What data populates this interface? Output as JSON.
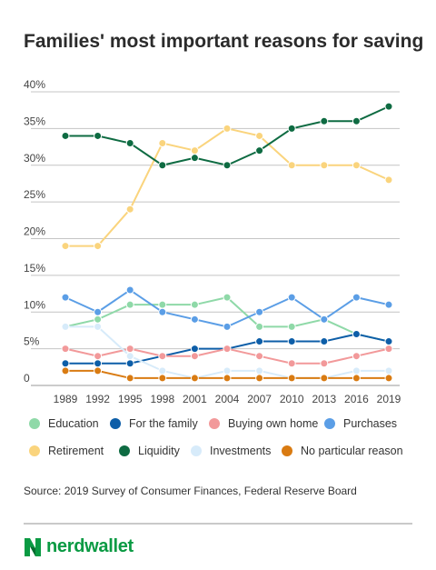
{
  "chart_data": {
    "type": "line",
    "title": "Families' most important reasons for saving",
    "x": [
      "1989",
      "1992",
      "1995",
      "1998",
      "2001",
      "2004",
      "2007",
      "2010",
      "2013",
      "2016",
      "2019"
    ],
    "y_ticks": [
      "0",
      "5%",
      "10%",
      "15%",
      "20%",
      "25%",
      "30%",
      "35%",
      "40%"
    ],
    "ylim": [
      0,
      40
    ],
    "grid": true,
    "legend_position": "bottom",
    "series": [
      {
        "name": "Education",
        "color": "#8fd9a8",
        "values": [
          8,
          9,
          11,
          11,
          11,
          12,
          8,
          8,
          9,
          7,
          6
        ]
      },
      {
        "name": "For the family",
        "color": "#0d5ea8",
        "values": [
          3,
          3,
          3,
          4,
          5,
          5,
          6,
          6,
          6,
          7,
          6
        ]
      },
      {
        "name": "Buying own home",
        "color": "#f2999a",
        "values": [
          5,
          4,
          5,
          4,
          4,
          5,
          4,
          3,
          3,
          4,
          5
        ]
      },
      {
        "name": "Purchases",
        "color": "#5b9ee6",
        "values": [
          12,
          10,
          13,
          10,
          9,
          8,
          10,
          12,
          9,
          12,
          11
        ]
      },
      {
        "name": "Retirement",
        "color": "#fad47d",
        "values": [
          19,
          19,
          24,
          33,
          32,
          35,
          34,
          30,
          30,
          30,
          28
        ]
      },
      {
        "name": "Liquidity",
        "color": "#0e6b42",
        "values": [
          34,
          34,
          33,
          30,
          31,
          30,
          32,
          35,
          36,
          36,
          38
        ]
      },
      {
        "name": "Investments",
        "color": "#d7ebfa",
        "values": [
          8,
          8,
          4,
          2,
          1,
          2,
          2,
          1,
          1,
          2,
          2
        ]
      },
      {
        "name": "No particular reason",
        "color": "#d97b12",
        "values": [
          2,
          2,
          1,
          1,
          1,
          1,
          1,
          1,
          1,
          1,
          1
        ]
      }
    ]
  },
  "legend_row1": [
    {
      "label": "Education",
      "color": "#8fd9a8"
    },
    {
      "label": "For the family",
      "color": "#0d5ea8"
    },
    {
      "label": "Buying own home",
      "color": "#f2999a"
    },
    {
      "label": "Purchases",
      "color": "#5b9ee6"
    }
  ],
  "legend_row2": [
    {
      "label": "Retirement",
      "color": "#fad47d"
    },
    {
      "label": "Liquidity",
      "color": "#0e6b42"
    },
    {
      "label": "Investments",
      "color": "#d7ebfa"
    },
    {
      "label": "No particular reason",
      "color": "#d97b12"
    }
  ],
  "source": "Source: 2019 Survey of Consumer Finances, Federal Reserve Board",
  "logo": {
    "text": "nerdwallet",
    "icon": "nerdwallet-logo-icon",
    "color": "#0a9a43"
  }
}
